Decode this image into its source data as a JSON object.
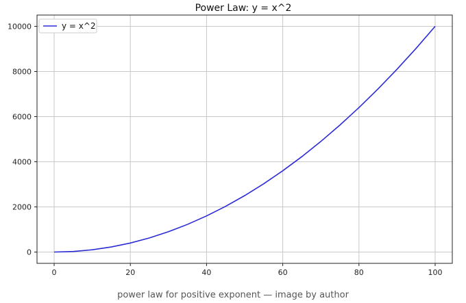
{
  "chart_data": {
    "type": "line",
    "title": "Power Law: y = x^2",
    "xlabel": "",
    "ylabel": "",
    "xlim": [
      -4.5,
      104.5
    ],
    "ylim": [
      -500,
      10500
    ],
    "xticks": [
      0,
      20,
      40,
      60,
      80,
      100
    ],
    "yticks": [
      0,
      2000,
      4000,
      6000,
      8000,
      10000
    ],
    "grid": true,
    "legend_position": "top-left",
    "series": [
      {
        "name": "y = x^2",
        "color": "#2a2ad6",
        "x": [
          0,
          5,
          10,
          15,
          20,
          25,
          30,
          35,
          40,
          45,
          50,
          55,
          60,
          65,
          70,
          75,
          80,
          85,
          90,
          95,
          100
        ],
        "y": [
          0,
          25,
          100,
          225,
          400,
          625,
          900,
          1225,
          1600,
          2025,
          2500,
          3025,
          3600,
          4225,
          4900,
          5625,
          6400,
          7225,
          8100,
          9025,
          10000
        ]
      }
    ]
  },
  "caption": "power law for positive exponent — image by author"
}
